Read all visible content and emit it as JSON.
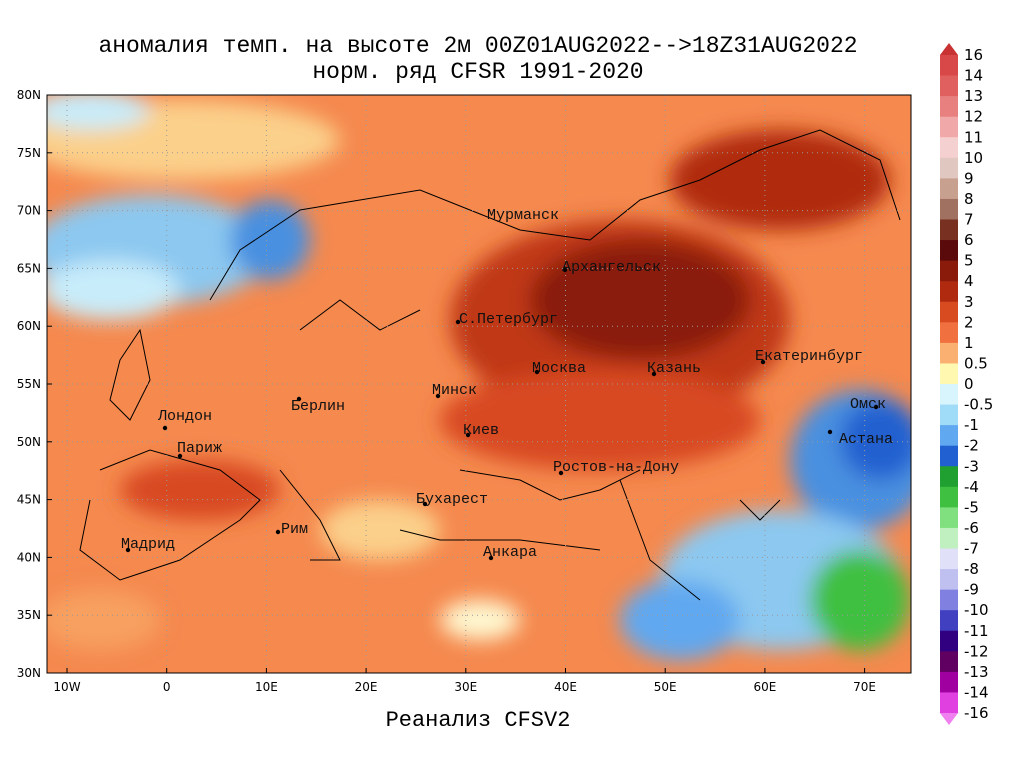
{
  "title": [
    "аномалия темп. на высоте 2м 00Z01AUG2022-->18Z31AUG2022",
    "норм. ряд CFSR 1991-2020"
  ],
  "lat_labels": [
    "80N",
    "75N",
    "70N",
    "65N",
    "60N",
    "55N",
    "50N",
    "45N",
    "40N",
    "35N",
    "30N"
  ],
  "lon_labels": [
    "10W",
    "0",
    "10E",
    "20E",
    "30E",
    "40E",
    "50E",
    "60E",
    "70E"
  ],
  "cities": [
    "Мурманск",
    "Архангельск",
    "С.Петербург",
    "Москва",
    "Казань",
    "Екатеринбург",
    "Минск",
    "Омск",
    "Астана",
    "Лондон",
    "Берлин",
    "Киев",
    "Париж",
    "Ростов-на-Дону",
    "Бухарест",
    "Рим",
    "Мадрид",
    "Анкара"
  ],
  "colorbar": {
    "labels": [
      16,
      14,
      13,
      12,
      11,
      10,
      9,
      8,
      7,
      6,
      5,
      4,
      3,
      2,
      1,
      0.5,
      0,
      -0.5,
      -1,
      -2,
      -3,
      -4,
      -5,
      -6,
      -7,
      -8,
      -9,
      -10,
      -11,
      -12,
      -13,
      -14,
      -16
    ],
    "colors": [
      "#c83232",
      "#d94848",
      "#e06060",
      "#e88080",
      "#f0a8a8",
      "#f5d0d0",
      "#e0c8c0",
      "#c8a090",
      "#a07060",
      "#783020",
      "#5a0a0a",
      "#8a1a0a",
      "#b02a10",
      "#d84a20",
      "#f07040",
      "#fab070",
      "#fff8b0",
      "#d8f4fc",
      "#a0dcf8",
      "#60a8f0",
      "#2060d0",
      "#20a030",
      "#40c040",
      "#80e080",
      "#c0f0c0",
      "#e0e0f8",
      "#c0c0f0",
      "#8080e0",
      "#4040c0",
      "#300080",
      "#600060",
      "#a000a0",
      "#e040e0",
      "#f080f0"
    ]
  },
  "caption": "Реанализ CFSV2"
}
